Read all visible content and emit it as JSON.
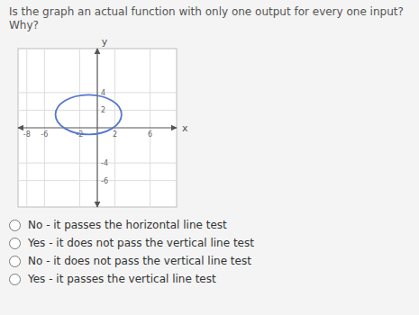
{
  "chart_data": {
    "type": "ellipse",
    "title": "Is the graph an actual function with only one output for every one input? Why?",
    "xlabel": "x",
    "ylabel": "y",
    "xlim": [
      -9,
      9
    ],
    "ylim": [
      -9,
      9
    ],
    "xticks": [
      -8,
      -6,
      -2,
      2,
      6
    ],
    "yticks": [
      -6,
      -4,
      2,
      4
    ],
    "grid": true,
    "center_x": -1.0,
    "center_y": 1.5,
    "width": 7.5,
    "height": 4.5,
    "color": "#5577cc",
    "options": [
      "No - it passes the horizontal line test",
      "Yes - it does not pass the vertical line test",
      "No - it does not pass the vertical line test",
      "Yes - it passes the vertical line test"
    ]
  }
}
